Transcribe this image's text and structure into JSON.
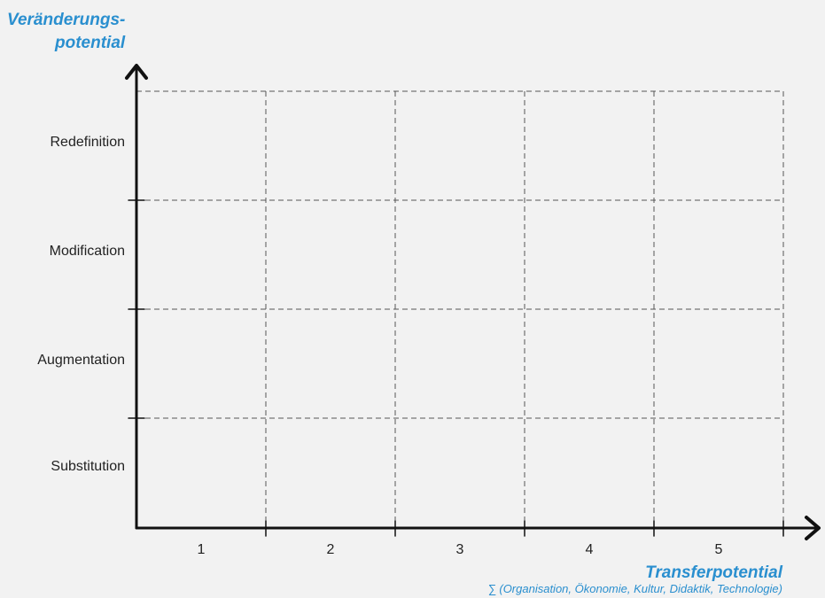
{
  "y_axis": {
    "title_line1": "Veränderungs-",
    "title_line2": "potential",
    "levels": [
      "Redefinition",
      "Modification",
      "Augmentation",
      "Substitution"
    ]
  },
  "x_axis": {
    "title": "Transferpotential",
    "subtitle": "∑ (Organisation, Ökonomie, Kultur, Didaktik, Technologie)",
    "categories": [
      "1",
      "2",
      "3",
      "4",
      "5"
    ]
  },
  "colors": {
    "accent": "#2a8fcf",
    "axis": "#111111",
    "grid": "#555555",
    "background": "#f2f2f2"
  }
}
